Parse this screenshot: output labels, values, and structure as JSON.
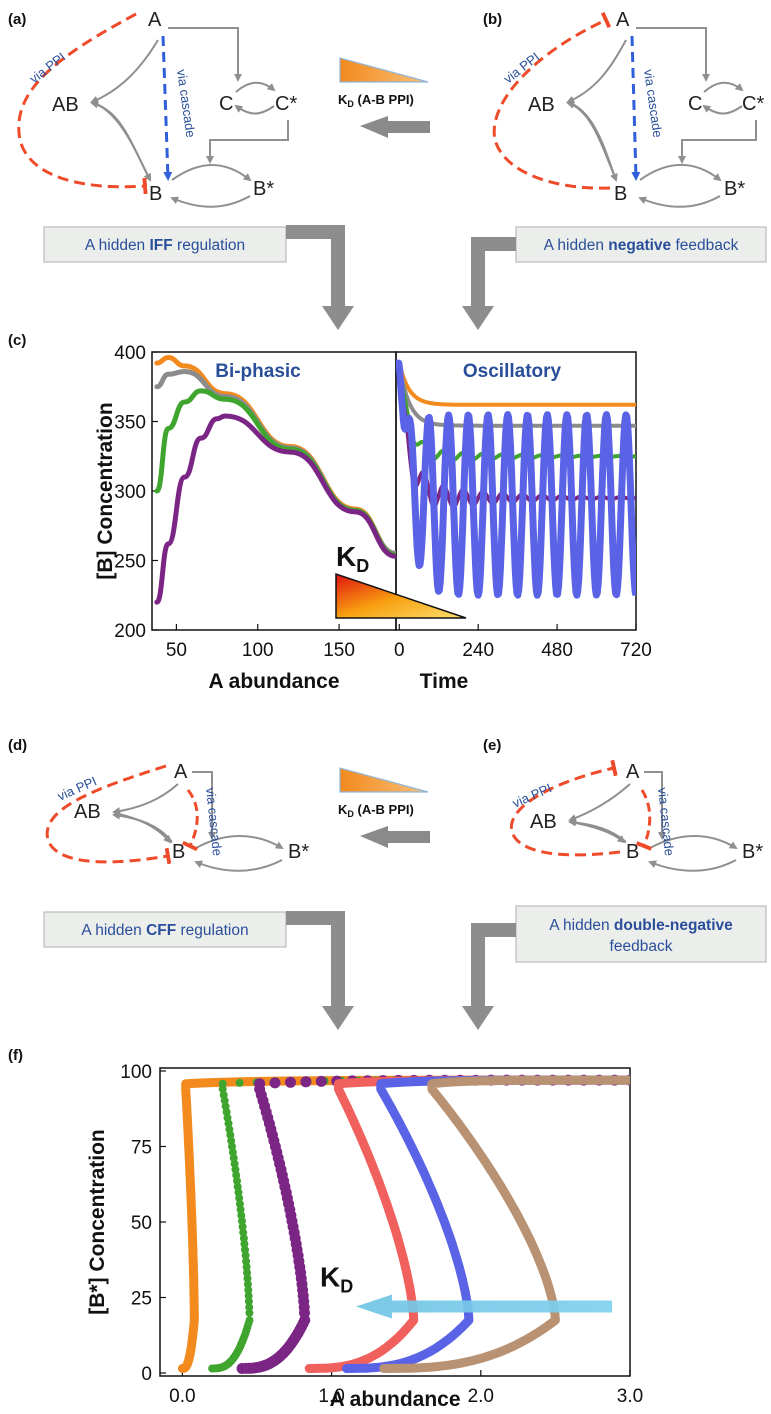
{
  "panels": {
    "a": {
      "tag": "(a)",
      "node_a": "A",
      "node_ab": "AB",
      "node_b": "B",
      "node_c": "C",
      "node_cs": "C*",
      "node_bs": "B*",
      "ppi": "via PPI",
      "cascade": "via cascade"
    },
    "b": {
      "tag": "(b)",
      "node_a": "A",
      "node_ab": "AB",
      "node_b": "B",
      "node_c": "C",
      "node_cs": "C*",
      "node_bs": "B*",
      "ppi": "via PPI",
      "cascade": "via cascade"
    },
    "c": {
      "tag": "(c)"
    },
    "d": {
      "tag": "(d)",
      "node_a": "A",
      "node_ab": "AB",
      "node_b": "B",
      "node_bs": "B*",
      "ppi": "via PPI",
      "cascade": "via cascade"
    },
    "e": {
      "tag": "(e)",
      "node_a": "A",
      "node_ab": "AB",
      "node_b": "B",
      "node_bs": "B*",
      "ppi": "via PPI",
      "cascade": "via cascade"
    },
    "f": {
      "tag": "(f)"
    }
  },
  "legend_top": {
    "kd": "K",
    "sub": "D",
    "rest": " (A-B PPI)"
  },
  "legend_mid": {
    "kd": "K",
    "sub": "D",
    "rest": " (A-B PPI)"
  },
  "boxes": {
    "iff": {
      "pre": "A hidden ",
      "bold": "IFF",
      "post": " regulation"
    },
    "neg": {
      "pre": "A hidden ",
      "bold": "negative",
      "post": " feedback"
    },
    "cff": {
      "pre": "A hidden ",
      "bold": "CFF",
      "post": " regulation"
    },
    "dneg": {
      "pre": "A hidden ",
      "bold": "double-negative",
      "line2": "feedback"
    }
  },
  "kd_labels": {
    "c": {
      "k": "K",
      "sub": "D"
    },
    "f": {
      "k": "K",
      "sub": "D"
    }
  },
  "colors": {
    "orange": "#f28a1e",
    "gray": "#8c8c8c",
    "green": "#3fa52e",
    "purple": "#7b2585",
    "blue": "#5a63e6",
    "salmon": "#f0615e",
    "tan": "#b89272",
    "red_dash": "#ee4b2b",
    "blue_dash": "#2f5fd9",
    "cyan_arrow": "#70c4e4"
  },
  "chart_data": [
    {
      "type": "line",
      "title": "Bi-phasic",
      "xlabel": "A abundance",
      "ylabel": "[B] Concentration",
      "xlim": [
        35,
        185
      ],
      "ylim": [
        200,
        400
      ],
      "xticks": [
        50,
        100,
        150
      ],
      "yticks": [
        200,
        250,
        300,
        350,
        400
      ],
      "series": [
        {
          "color": "orange",
          "points": [
            [
              38,
              392
            ],
            [
              45,
              396
            ],
            [
              55,
              390
            ],
            [
              80,
              370
            ],
            [
              120,
              332
            ],
            [
              160,
              287
            ],
            [
              185,
              255
            ]
          ]
        },
        {
          "color": "gray",
          "points": [
            [
              38,
              375
            ],
            [
              45,
              384
            ],
            [
              55,
              386
            ],
            [
              80,
              368
            ],
            [
              120,
              331
            ],
            [
              160,
              286
            ],
            [
              185,
              255
            ]
          ]
        },
        {
          "color": "green",
          "points": [
            [
              38,
              300
            ],
            [
              45,
              345
            ],
            [
              55,
              364
            ],
            [
              65,
              372
            ],
            [
              80,
              366
            ],
            [
              120,
              330
            ],
            [
              160,
              286
            ],
            [
              185,
              254
            ]
          ]
        },
        {
          "color": "purple",
          "points": [
            [
              38,
              220
            ],
            [
              45,
              262
            ],
            [
              55,
              310
            ],
            [
              65,
              338
            ],
            [
              75,
              352
            ],
            [
              80,
              354
            ],
            [
              120,
              328
            ],
            [
              160,
              285
            ],
            [
              185,
              253
            ]
          ]
        }
      ]
    },
    {
      "type": "line",
      "title": "Oscillatory",
      "xlabel": "Time",
      "ylabel": "",
      "xlim": [
        -10,
        720
      ],
      "ylim": [
        200,
        400
      ],
      "xticks": [
        0,
        240,
        480,
        720
      ],
      "series": [
        {
          "color": "orange",
          "steady": 362
        },
        {
          "color": "gray",
          "steady": 347
        },
        {
          "color": "green",
          "steady": 325,
          "amplitude": 5,
          "period": 60
        },
        {
          "color": "purple",
          "steady": 295,
          "amplitude": 12,
          "period": 60
        },
        {
          "color": "blue",
          "center": 290,
          "amplitude": 65,
          "period": 60
        }
      ]
    },
    {
      "type": "scatter",
      "title": "",
      "xlabel": "A abundance",
      "ylabel": "[B*] Concentration",
      "xlim": [
        -0.15,
        3.0
      ],
      "ylim": [
        0,
        100
      ],
      "xticks": [
        "0.0",
        "1.0",
        "2.0",
        "3.0"
      ],
      "yticks": [
        0,
        25,
        50,
        75,
        100
      ],
      "series": [
        {
          "color": "orange",
          "x_turn": 0.08,
          "x_start": 0.0
        },
        {
          "color": "green",
          "x_turn": 0.45,
          "x_start": 0.2
        },
        {
          "color": "purple",
          "x_turn": 0.82,
          "x_start": 0.4
        },
        {
          "color": "salmon",
          "x_turn": 1.55,
          "x_start": 0.85
        },
        {
          "color": "blue",
          "x_turn": 1.92,
          "x_start": 1.1
        },
        {
          "color": "tan",
          "x_turn": 2.5,
          "x_start": 1.35
        }
      ]
    }
  ]
}
